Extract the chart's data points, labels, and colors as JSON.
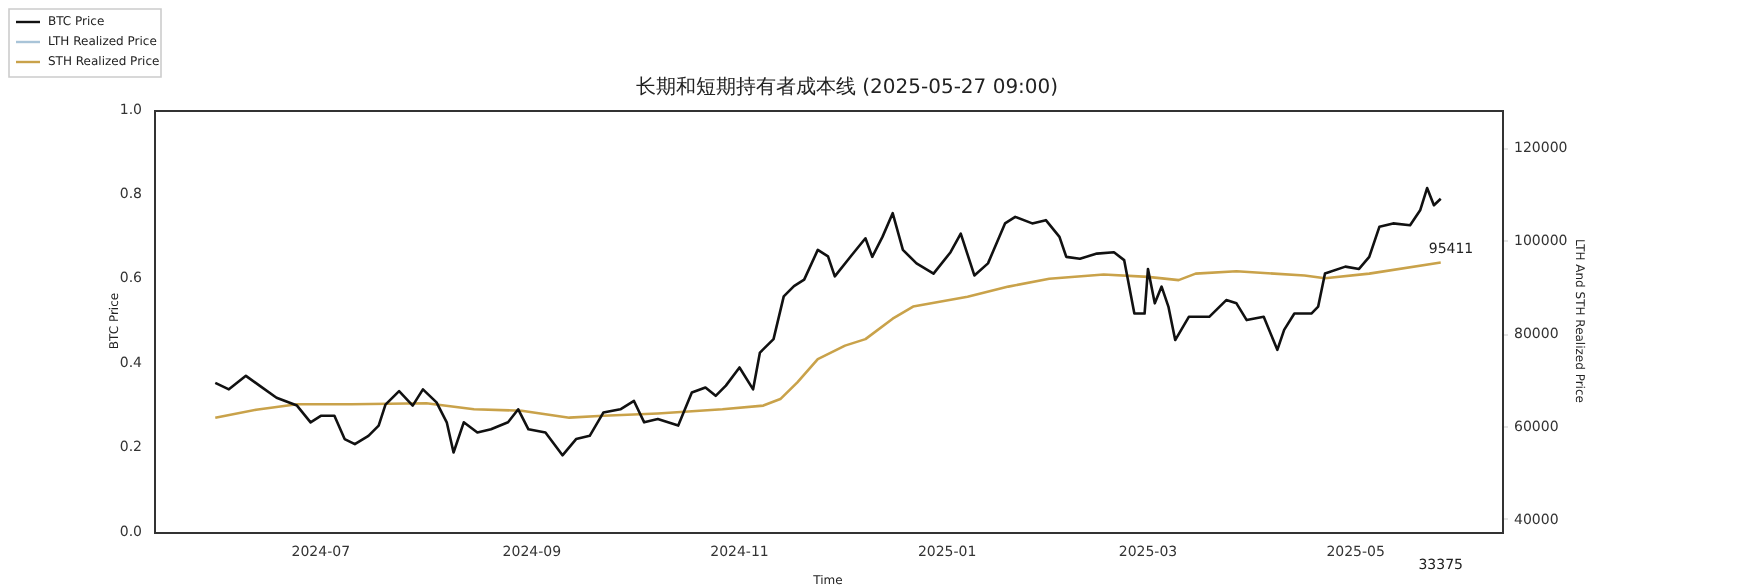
{
  "chart_data": {
    "type": "line",
    "title": "长期和短期持有者成本线 (2025-05-27 09:00)",
    "xlabel": "Time",
    "ylabel": "BTC Price",
    "y2label": "LTH And STH Realized Price",
    "xlim": [
      "2024-05-13",
      "2025-06-13"
    ],
    "xticks": [
      "2024-07",
      "2024-09",
      "2024-11",
      "2025-01",
      "2025-03",
      "2025-05"
    ],
    "ylim": [
      0,
      1
    ],
    "yticks": [
      {
        "value": 0,
        "label": "0.0"
      },
      0.2,
      0.4,
      0.6,
      0.8,
      {
        "value": 1,
        "label": "1.0"
      }
    ],
    "y2lim": [
      37400,
      128200
    ],
    "y2ticks": [
      40000,
      60000,
      80000,
      100000,
      120000
    ],
    "grid": false,
    "legend": "top left",
    "series": [
      {
        "name": "BTC Price",
        "color": "#111111",
        "axis": "y2",
        "x": [
          "2024-05-31",
          "2024-06-04",
          "2024-06-09",
          "2024-06-13",
          "2024-06-18",
          "2024-06-24",
          "2024-06-28",
          "2024-07-01",
          "2024-07-05",
          "2024-07-08",
          "2024-07-11",
          "2024-07-15",
          "2024-07-18",
          "2024-07-20",
          "2024-07-24",
          "2024-07-28",
          "2024-07-31",
          "2024-08-04",
          "2024-08-07",
          "2024-08-09",
          "2024-08-12",
          "2024-08-16",
          "2024-08-20",
          "2024-08-25",
          "2024-08-28",
          "2024-08-31",
          "2024-09-05",
          "2024-09-10",
          "2024-09-14",
          "2024-09-18",
          "2024-09-22",
          "2024-09-27",
          "2024-10-01",
          "2024-10-04",
          "2024-10-08",
          "2024-10-14",
          "2024-10-18",
          "2024-10-22",
          "2024-10-25",
          "2024-10-28",
          "2024-11-01",
          "2024-11-05",
          "2024-11-07",
          "2024-11-11",
          "2024-11-14",
          "2024-11-17",
          "2024-11-20",
          "2024-11-24",
          "2024-11-27",
          "2024-11-29",
          "2024-12-04",
          "2024-12-08",
          "2024-12-10",
          "2024-12-13",
          "2024-12-16",
          "2024-12-19",
          "2024-12-23",
          "2024-12-28",
          "2025-01-02",
          "2025-01-05",
          "2025-01-09",
          "2025-01-13",
          "2025-01-18",
          "2025-01-21",
          "2025-01-26",
          "2025-01-30",
          "2025-02-03",
          "2025-02-05",
          "2025-02-09",
          "2025-02-14",
          "2025-02-19",
          "2025-02-22",
          "2025-02-25",
          "2025-02-28",
          "2025-03-01",
          "2025-03-03",
          "2025-03-05",
          "2025-03-07",
          "2025-03-09",
          "2025-03-13",
          "2025-03-19",
          "2025-03-24",
          "2025-03-27",
          "2025-03-30",
          "2025-04-04",
          "2025-04-08",
          "2025-04-10",
          "2025-04-13",
          "2025-04-18",
          "2025-04-20",
          "2025-04-22",
          "2025-04-28",
          "2025-05-02",
          "2025-05-05",
          "2025-05-08",
          "2025-05-12",
          "2025-05-17",
          "2025-05-20",
          "2025-05-22",
          "2025-05-24",
          "2025-05-26"
        ],
        "values": [
          69500,
          68100,
          71000,
          68900,
          66300,
          64600,
          61000,
          62400,
          62400,
          57400,
          56300,
          58100,
          60300,
          64800,
          67700,
          64600,
          68100,
          65300,
          61000,
          54500,
          61000,
          58800,
          59500,
          61000,
          63800,
          59500,
          58800,
          53900,
          57400,
          58100,
          63100,
          63800,
          65600,
          61000,
          61700,
          60300,
          67400,
          68500,
          66700,
          68900,
          72800,
          68100,
          76000,
          78900,
          88100,
          90300,
          91700,
          98100,
          96700,
          92400,
          97000,
          100600,
          96600,
          100900,
          106000,
          98100,
          95200,
          93000,
          97600,
          101600,
          92600,
          95200,
          103800,
          105200,
          103800,
          104500,
          100900,
          96600,
          96200,
          97300,
          97600,
          95900,
          84400,
          84400,
          94000,
          86600,
          90200,
          85900,
          78700,
          83700,
          83700,
          87300,
          86600,
          83000,
          83700,
          76600,
          80900,
          84400,
          84400,
          85900,
          93000,
          94500,
          94000,
          96600,
          103100,
          103800,
          103400,
          106700,
          111400,
          107700,
          109100
        ]
      },
      {
        "name": "LTH Realized Price",
        "color": "#a9c4d8",
        "axis": "y2"
      },
      {
        "name": "STH Realized Price",
        "color": "#c9a24a",
        "axis": "y2",
        "x": [
          "2024-05-31",
          "2024-06-12",
          "2024-06-24",
          "2024-07-10",
          "2024-08-01",
          "2024-08-15",
          "2024-08-29",
          "2024-09-12",
          "2024-09-22",
          "2024-10-08",
          "2024-10-27",
          "2024-11-08",
          "2024-11-13",
          "2024-11-18",
          "2024-11-24",
          "2024-12-02",
          "2024-12-08",
          "2024-12-16",
          "2024-12-22",
          "2025-01-07",
          "2025-01-19",
          "2025-01-31",
          "2025-02-16",
          "2025-03-01",
          "2025-03-10",
          "2025-03-15",
          "2025-03-27",
          "2025-04-16",
          "2025-04-22",
          "2025-05-05",
          "2025-05-26"
        ],
        "values": [
          62000,
          63700,
          64900,
          64900,
          65100,
          63800,
          63500,
          62000,
          62400,
          62900,
          63800,
          64600,
          66000,
          69600,
          74600,
          77500,
          78900,
          83300,
          85900,
          88000,
          90200,
          91900,
          92800,
          92300,
          91600,
          93000,
          93500,
          92600,
          92000,
          93000,
          95400
        ]
      }
    ],
    "annotations": [
      "95411",
      "33375"
    ]
  }
}
